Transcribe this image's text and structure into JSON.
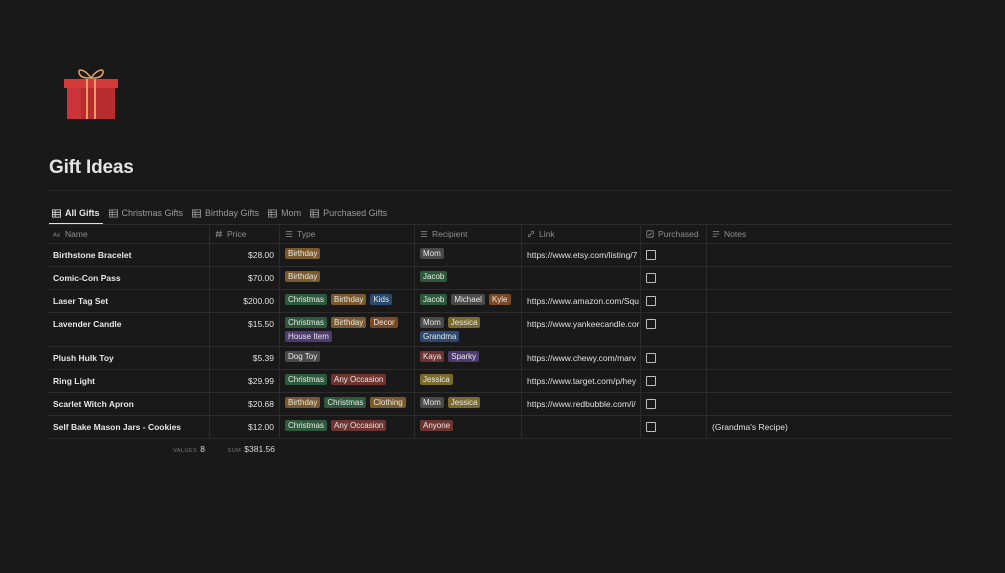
{
  "page": {
    "title": "Gift Ideas",
    "icon": "gift-icon"
  },
  "tabs": [
    {
      "label": "All Gifts",
      "icon": "table-icon",
      "active": true
    },
    {
      "label": "Christmas Gifts",
      "icon": "table-icon",
      "active": false
    },
    {
      "label": "Birthday Gifts",
      "icon": "table-icon",
      "active": false
    },
    {
      "label": "Mom",
      "icon": "table-icon",
      "active": false
    },
    {
      "label": "Purchased Gifts",
      "icon": "table-icon",
      "active": false
    }
  ],
  "columns": {
    "name": {
      "label": "Name",
      "icon": "text-icon"
    },
    "price": {
      "label": "Price",
      "icon": "number-icon"
    },
    "type": {
      "label": "Type",
      "icon": "list-icon"
    },
    "recipient": {
      "label": "Recipient",
      "icon": "list-icon"
    },
    "link": {
      "label": "Link",
      "icon": "link-icon"
    },
    "purchased": {
      "label": "Purchased",
      "icon": "checkbox-icon"
    },
    "notes": {
      "label": "Notes",
      "icon": "text-lines-icon"
    }
  },
  "tag_colors": {
    "Birthday": "#7a5a2b",
    "Christmas": "#2d5a3d",
    "Kids": "#2b4a6e",
    "Decor": "#7c4a22",
    "House Item": "#4d3a6e",
    "Dog Toy": "#4a4a4a",
    "Any Occasion": "#6e3530",
    "Clothing": "#7a5a2b",
    "Mom": "#4a4a4a",
    "Jacob": "#2d5a3d",
    "Michael": "#4a4a4a",
    "Kyle": "#7c4a22",
    "Jessica": "#7a6a2b",
    "Grandma": "#2b4a6e",
    "Kaya": "#6e3530",
    "Sparky": "#4d3a6e",
    "Anyone": "#6e3530"
  },
  "rows": [
    {
      "name": "Birthstone Bracelet",
      "price": "$28.00",
      "type": [
        "Birthday"
      ],
      "recipient": [
        "Mom"
      ],
      "link": "https://www.etsy.com/listing/7",
      "purchased": false,
      "notes": ""
    },
    {
      "name": "Comic-Con Pass",
      "price": "$70.00",
      "type": [
        "Birthday"
      ],
      "recipient": [
        "Jacob"
      ],
      "link": "",
      "purchased": false,
      "notes": ""
    },
    {
      "name": "Laser Tag Set",
      "price": "$200.00",
      "type": [
        "Christmas",
        "Birthday",
        "Kids"
      ],
      "recipient": [
        "Jacob",
        "Michael",
        "Kyle"
      ],
      "link": "https://www.amazon.com/Squ",
      "purchased": false,
      "notes": ""
    },
    {
      "name": "Lavender Candle",
      "price": "$15.50",
      "type": [
        "Christmas",
        "Birthday",
        "Decor",
        "House Item"
      ],
      "recipient": [
        "Mom",
        "Jessica",
        "Grandma"
      ],
      "link": "https://www.yankeecandle.cor",
      "purchased": false,
      "notes": ""
    },
    {
      "name": "Plush Hulk Toy",
      "price": "$5.39",
      "type": [
        "Dog Toy"
      ],
      "recipient": [
        "Kaya",
        "Sparky"
      ],
      "link": "https://www.chewy.com/marv",
      "purchased": false,
      "notes": ""
    },
    {
      "name": "Ring Light",
      "price": "$29.99",
      "type": [
        "Christmas",
        "Any Occasion"
      ],
      "recipient": [
        "Jessica"
      ],
      "link": "https://www.target.com/p/hey",
      "purchased": false,
      "notes": ""
    },
    {
      "name": "Scarlet Witch Apron",
      "price": "$20.68",
      "type": [
        "Birthday",
        "Christmas",
        "Clothing"
      ],
      "recipient": [
        "Mom",
        "Jessica"
      ],
      "link": "https://www.redbubble.com/i/",
      "purchased": false,
      "notes": ""
    },
    {
      "name": "Self Bake Mason Jars - Cookies",
      "price": "$12.00",
      "type": [
        "Christmas",
        "Any Occasion"
      ],
      "recipient": [
        "Anyone"
      ],
      "link": "",
      "purchased": false,
      "notes": "(Grandma's Recipe)"
    }
  ],
  "footer": {
    "values_label": "VALUES",
    "values_count": "8",
    "sum_label": "SUM",
    "sum_value": "$381.56"
  }
}
